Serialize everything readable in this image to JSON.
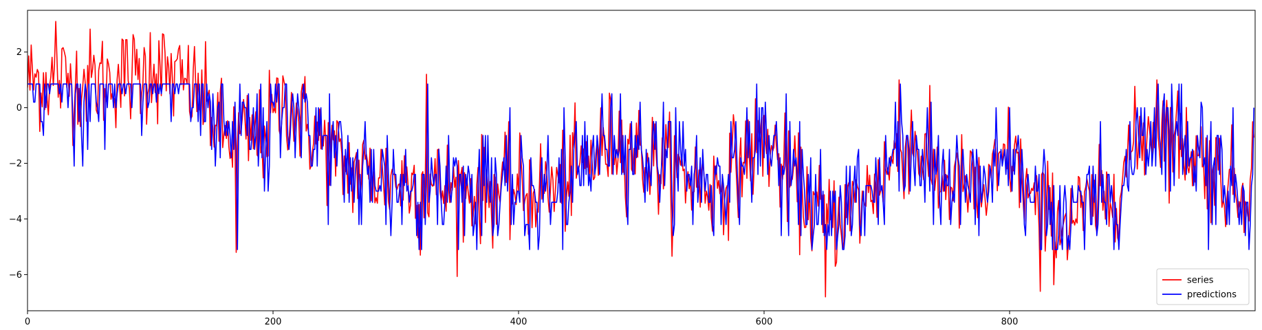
{
  "chart_data": {
    "type": "line",
    "xlim": [
      0,
      1000
    ],
    "ylim": [
      -7.3,
      3.5
    ],
    "xticks": [
      0,
      200,
      400,
      600,
      800
    ],
    "yticks": [
      -6,
      -4,
      -2,
      0,
      2
    ],
    "legend": {
      "position": "lower-right",
      "entries": [
        "series",
        "predictions"
      ]
    },
    "n_points": 1000,
    "series": [
      {
        "name": "series",
        "color": "#ff0000",
        "trend_knots": [
          [
            0,
            1.0
          ],
          [
            60,
            1.0
          ],
          [
            110,
            1.3
          ],
          [
            140,
            0.5
          ],
          [
            160,
            -1.0
          ],
          [
            190,
            -1.1
          ],
          [
            210,
            0.3
          ],
          [
            230,
            -0.8
          ],
          [
            260,
            -2.2
          ],
          [
            300,
            -2.6
          ],
          [
            360,
            -3.0
          ],
          [
            430,
            -2.9
          ],
          [
            480,
            -1.1
          ],
          [
            520,
            -2.2
          ],
          [
            560,
            -2.9
          ],
          [
            580,
            -2.0
          ],
          [
            600,
            -1.1
          ],
          [
            620,
            -2.5
          ],
          [
            650,
            -4.1
          ],
          [
            680,
            -3.4
          ],
          [
            700,
            -2.2
          ],
          [
            720,
            -1.1
          ],
          [
            740,
            -2.5
          ],
          [
            780,
            -3.2
          ],
          [
            800,
            -1.6
          ],
          [
            820,
            -3.5
          ],
          [
            840,
            -4.1
          ],
          [
            880,
            -3.4
          ],
          [
            900,
            -1.5
          ],
          [
            920,
            -0.5
          ],
          [
            950,
            -1.6
          ],
          [
            990,
            -3.1
          ],
          [
            999,
            -1.5
          ]
        ],
        "noise_sd": 0.9,
        "min_marked": [
          [
            170,
            -5.2
          ],
          [
            320,
            -5.3
          ],
          [
            650,
            -6.8
          ],
          [
            825,
            -6.6
          ]
        ],
        "max_marked": [
          [
            23,
            3.1
          ],
          [
            100,
            2.7
          ],
          [
            325,
            1.2
          ],
          [
            710,
            1.0
          ],
          [
            920,
            1.0
          ]
        ]
      },
      {
        "name": "predictions",
        "color": "#0000ff",
        "levels": [
          -5.1,
          -4.6,
          -4.2,
          -3.4,
          -3.0,
          -2.8,
          -2.4,
          -2.1,
          -1.8,
          -1.5,
          -1.0,
          -0.5,
          0.0,
          0.2,
          0.5,
          0.85
        ],
        "lag": 1
      }
    ]
  }
}
